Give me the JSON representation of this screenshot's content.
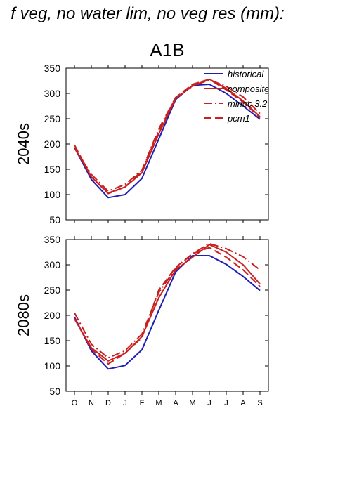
{
  "figure_title": "f veg, no water lim, no veg res (mm):",
  "scenario_label": "A1B",
  "colors": {
    "historical": "#1f1fb4",
    "future": "#c8201f",
    "axis": "#000000"
  },
  "chart_data": [
    {
      "type": "line",
      "panel_label": "2040s",
      "ylim": [
        50,
        350
      ],
      "yticks": [
        "50",
        "100",
        "150",
        "200",
        "250",
        "300",
        "350"
      ],
      "categories": [
        "O",
        "N",
        "D",
        "J",
        "F",
        "M",
        "A",
        "M",
        "J",
        "J",
        "A",
        "S"
      ],
      "legend_placement": "top-right",
      "series": [
        {
          "name": "historical",
          "style": "solid",
          "color": "#1f1fb4",
          "values": [
            193,
            130,
            94,
            100,
            132,
            210,
            288,
            316,
            318,
            300,
            275,
            249
          ]
        },
        {
          "name": "composite",
          "style": "solid",
          "color": "#c8201f",
          "values": [
            193,
            135,
            103,
            115,
            143,
            220,
            290,
            315,
            328,
            310,
            285,
            254
          ]
        },
        {
          "name": "mirloc 3.2",
          "style": "dashdot",
          "color": "#c8201f",
          "values": [
            192,
            140,
            107,
            120,
            148,
            230,
            292,
            314,
            327,
            314,
            293,
            260
          ]
        },
        {
          "name": "pcm1",
          "style": "dash",
          "color": "#c8201f",
          "values": [
            198,
            135,
            102,
            115,
            147,
            225,
            292,
            318,
            328,
            307,
            283,
            252
          ]
        }
      ]
    },
    {
      "type": "line",
      "panel_label": "2080s",
      "ylim": [
        50,
        350
      ],
      "yticks": [
        "50",
        "100",
        "150",
        "200",
        "250",
        "300",
        "350"
      ],
      "categories": [
        "O",
        "N",
        "D",
        "J",
        "F",
        "M",
        "A",
        "M",
        "J",
        "J",
        "A",
        "S"
      ],
      "series": [
        {
          "name": "historical",
          "style": "solid",
          "color": "#1f1fb4",
          "values": [
            197,
            130,
            94,
            101,
            132,
            210,
            286,
            318,
            318,
            301,
            277,
            249
          ]
        },
        {
          "name": "composite",
          "style": "solid",
          "color": "#c8201f",
          "values": [
            193,
            136,
            110,
            125,
            158,
            235,
            290,
            315,
            340,
            325,
            300,
            262
          ]
        },
        {
          "name": "mirloc 3.2",
          "style": "dashdot",
          "color": "#c8201f",
          "values": [
            205,
            143,
            116,
            130,
            163,
            245,
            293,
            322,
            342,
            332,
            316,
            290
          ]
        },
        {
          "name": "pcm1",
          "style": "dash",
          "color": "#c8201f",
          "values": [
            194,
            133,
            104,
            125,
            156,
            250,
            295,
            322,
            334,
            315,
            290,
            257
          ]
        }
      ]
    }
  ]
}
